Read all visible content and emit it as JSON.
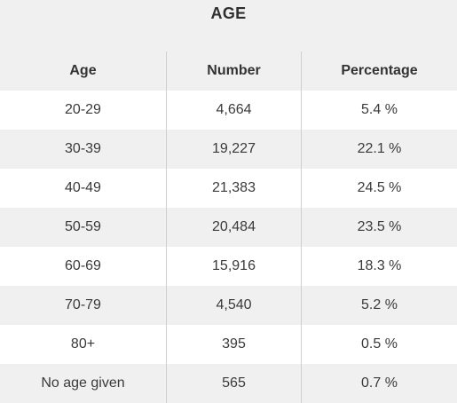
{
  "title": "AGE",
  "columns": [
    "Age",
    "Number",
    "Percentage"
  ],
  "rows": [
    {
      "age": "20-29",
      "number": "4,664",
      "percentage": "5.4 %"
    },
    {
      "age": "30-39",
      "number": "19,227",
      "percentage": "22.1 %"
    },
    {
      "age": "40-49",
      "number": "21,383",
      "percentage": "24.5 %"
    },
    {
      "age": "50-59",
      "number": "20,484",
      "percentage": "23.5 %"
    },
    {
      "age": "60-69",
      "number": "15,916",
      "percentage": "18.3 %"
    },
    {
      "age": "70-79",
      "number": "4,540",
      "percentage": "5.2 %"
    },
    {
      "age": "80+",
      "number": "395",
      "percentage": "0.5 %"
    },
    {
      "age": "No age given",
      "number": "565",
      "percentage": "0.7 %"
    }
  ]
}
